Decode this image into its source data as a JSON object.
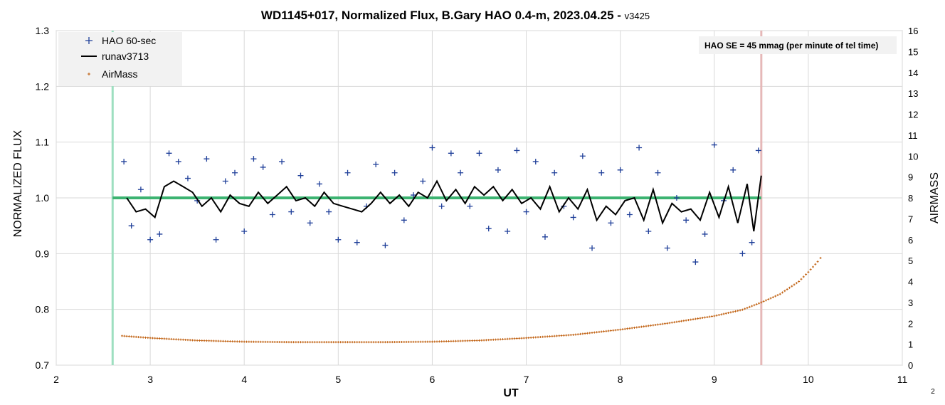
{
  "chart_data": {
    "type": "scatter",
    "title": "WD1145+017, Normalized Flux, B.Gary HAO 0.4-m, 2023.04.25 - ",
    "version": "v3425",
    "xlabel": "UT",
    "ylabel": "NORMALIZED FLUX",
    "y2label": "AIRMASS",
    "xlim": [
      2,
      11
    ],
    "ylim": [
      0.7,
      1.3
    ],
    "y2lim": [
      0,
      16
    ],
    "xticks": [
      "2",
      "3",
      "4",
      "5",
      "6",
      "7",
      "8",
      "9",
      "10",
      "11"
    ],
    "yticks": [
      "0.7",
      "0.8",
      "0.9",
      "1.0",
      "1.1",
      "1.2",
      "1.3"
    ],
    "y2ticks": [
      "0",
      "1",
      "2",
      "3",
      "4",
      "5",
      "6",
      "7",
      "8",
      "9",
      "10",
      "11",
      "12",
      "13",
      "14",
      "15",
      "16"
    ],
    "grid": true,
    "legend_position": "top-left",
    "annotation": "HAO SE =  45 mmag (per minute of tel time)",
    "page_number": "2",
    "colors": {
      "flux": "#1f3f99",
      "runav": "#000000",
      "airmass": "#c06010",
      "reference": "#3cb371",
      "start_marker": "#9edfc0",
      "end_marker": "#e6b8b8"
    },
    "reference_line": {
      "y": 1.0,
      "x_start": 2.6,
      "x_end": 9.5
    },
    "vertical_markers": [
      {
        "x": 2.6,
        "name": "start"
      },
      {
        "x": 9.5,
        "name": "end"
      }
    ],
    "series": [
      {
        "name": "HAO 60-sec",
        "kind": "points",
        "x": [
          2.72,
          2.8,
          2.9,
          3.0,
          3.1,
          3.2,
          3.3,
          3.4,
          3.5,
          3.6,
          3.7,
          3.8,
          3.9,
          4.0,
          4.1,
          4.2,
          4.3,
          4.4,
          4.5,
          4.6,
          4.7,
          4.8,
          4.9,
          5.0,
          5.1,
          5.2,
          5.3,
          5.4,
          5.5,
          5.6,
          5.7,
          5.8,
          5.9,
          6.0,
          6.1,
          6.2,
          6.3,
          6.4,
          6.5,
          6.6,
          6.7,
          6.8,
          6.9,
          7.0,
          7.1,
          7.2,
          7.3,
          7.4,
          7.5,
          7.6,
          7.7,
          7.8,
          7.9,
          8.0,
          8.1,
          8.2,
          8.3,
          8.4,
          8.5,
          8.6,
          8.7,
          8.8,
          8.9,
          9.0,
          9.1,
          9.2,
          9.3,
          9.4,
          9.47
        ],
        "y": [
          1.065,
          0.95,
          1.015,
          0.925,
          0.935,
          1.08,
          1.065,
          1.035,
          0.995,
          1.07,
          0.925,
          1.03,
          1.045,
          0.94,
          1.07,
          1.055,
          0.97,
          1.065,
          0.975,
          1.04,
          0.955,
          1.025,
          0.975,
          0.925,
          1.045,
          0.92,
          0.985,
          1.06,
          0.915,
          1.045,
          0.96,
          1.005,
          1.03,
          1.09,
          0.985,
          1.08,
          1.045,
          0.985,
          1.08,
          0.945,
          1.05,
          0.94,
          1.085,
          0.975,
          1.065,
          0.93,
          1.045,
          0.985,
          0.965,
          1.075,
          0.91,
          1.045,
          0.955,
          1.05,
          0.97,
          1.09,
          0.94,
          1.045,
          0.91,
          1.0,
          0.96,
          0.885,
          0.935,
          1.095,
          0.995,
          1.05,
          0.9,
          0.92,
          1.085
        ]
      },
      {
        "name": "runav3713",
        "kind": "line",
        "x": [
          2.75,
          2.85,
          2.95,
          3.05,
          3.15,
          3.25,
          3.35,
          3.45,
          3.55,
          3.65,
          3.75,
          3.85,
          3.95,
          4.05,
          4.15,
          4.25,
          4.35,
          4.45,
          4.55,
          4.65,
          4.75,
          4.85,
          4.95,
          5.05,
          5.15,
          5.25,
          5.35,
          5.45,
          5.55,
          5.65,
          5.75,
          5.85,
          5.95,
          6.05,
          6.15,
          6.25,
          6.35,
          6.45,
          6.55,
          6.65,
          6.75,
          6.85,
          6.95,
          7.05,
          7.15,
          7.25,
          7.35,
          7.45,
          7.55,
          7.65,
          7.75,
          7.85,
          7.95,
          8.05,
          8.15,
          8.25,
          8.35,
          8.45,
          8.55,
          8.65,
          8.75,
          8.85,
          8.95,
          9.05,
          9.15,
          9.25,
          9.35,
          9.42,
          9.5
        ],
        "y": [
          1.0,
          0.975,
          0.98,
          0.965,
          1.02,
          1.03,
          1.02,
          1.01,
          0.985,
          1.0,
          0.975,
          1.005,
          0.99,
          0.985,
          1.01,
          0.99,
          1.005,
          1.02,
          0.995,
          1.0,
          0.985,
          1.01,
          0.99,
          0.985,
          0.98,
          0.975,
          0.99,
          1.01,
          0.99,
          1.005,
          0.985,
          1.01,
          1.0,
          1.03,
          0.995,
          1.015,
          0.99,
          1.02,
          1.005,
          1.02,
          0.995,
          1.015,
          0.99,
          1.0,
          0.98,
          1.02,
          0.975,
          1.0,
          0.98,
          1.015,
          0.96,
          0.985,
          0.97,
          0.995,
          1.0,
          0.96,
          1.015,
          0.955,
          0.99,
          0.975,
          0.98,
          0.96,
          1.01,
          0.965,
          1.02,
          0.955,
          1.025,
          0.94,
          1.04
        ]
      },
      {
        "name": "AirMass",
        "kind": "y2",
        "x": [
          2.7,
          3.0,
          3.5,
          4.0,
          4.5,
          5.0,
          5.5,
          6.0,
          6.5,
          7.0,
          7.5,
          8.0,
          8.5,
          9.0,
          9.3,
          9.5,
          9.7,
          9.9,
          10.0,
          10.1,
          10.16
        ],
        "y": [
          1.4,
          1.3,
          1.18,
          1.12,
          1.1,
          1.1,
          1.1,
          1.12,
          1.18,
          1.3,
          1.45,
          1.7,
          2.0,
          2.35,
          2.65,
          3.0,
          3.4,
          4.0,
          4.45,
          4.95,
          5.3
        ]
      }
    ]
  }
}
